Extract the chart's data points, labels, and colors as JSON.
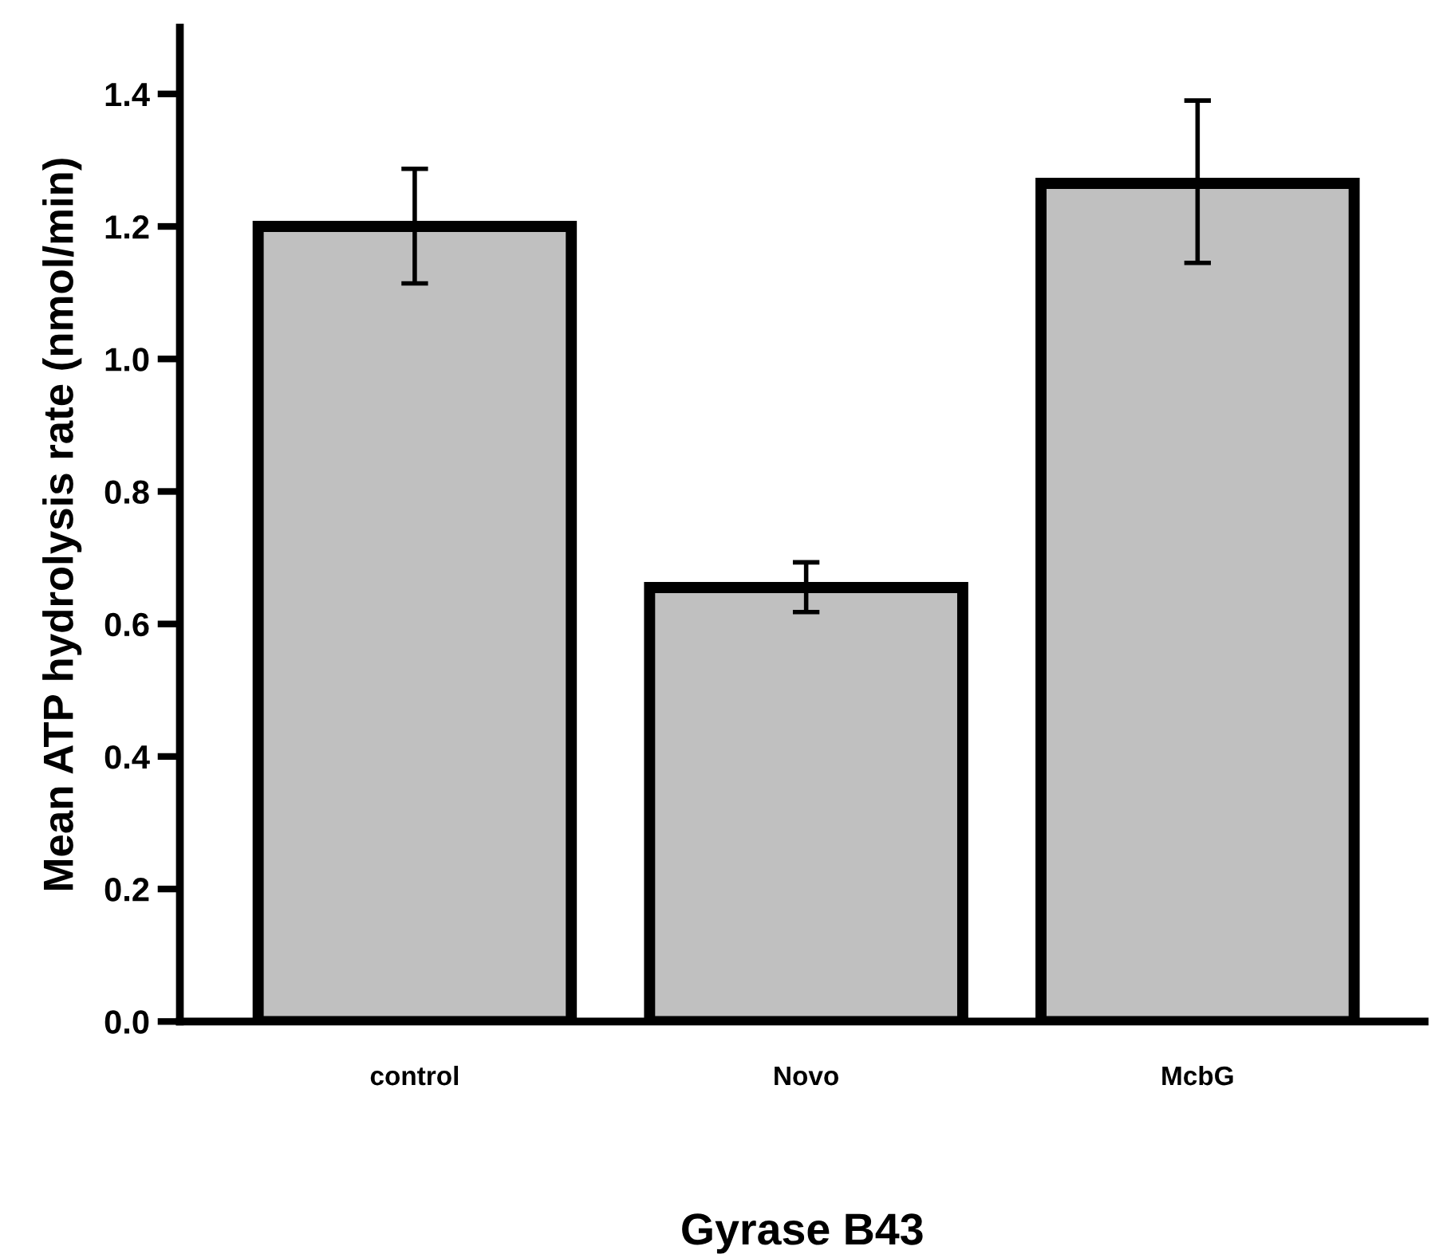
{
  "chart_data": {
    "type": "bar",
    "xlabel": "Gyrase B43",
    "ylabel": "Mean ATP hydrolysis rate (nmol/min)",
    "categories": [
      "control",
      "Novo",
      "McbG"
    ],
    "values": [
      1.2,
      0.655,
      1.265
    ],
    "errors": [
      [
        1.114,
        1.287
      ],
      [
        0.618,
        0.693
      ],
      [
        1.145,
        1.39
      ]
    ],
    "color": "#c0c0c0",
    "ylim": [
      0,
      1.5
    ],
    "yticks": [
      {
        "value": 0,
        "label": "0.0"
      },
      0.2,
      0.4,
      0.6,
      0.8,
      {
        "value": 1,
        "label": "1.0"
      },
      1.2,
      1.4
    ],
    "grid": false,
    "legend": false
  }
}
